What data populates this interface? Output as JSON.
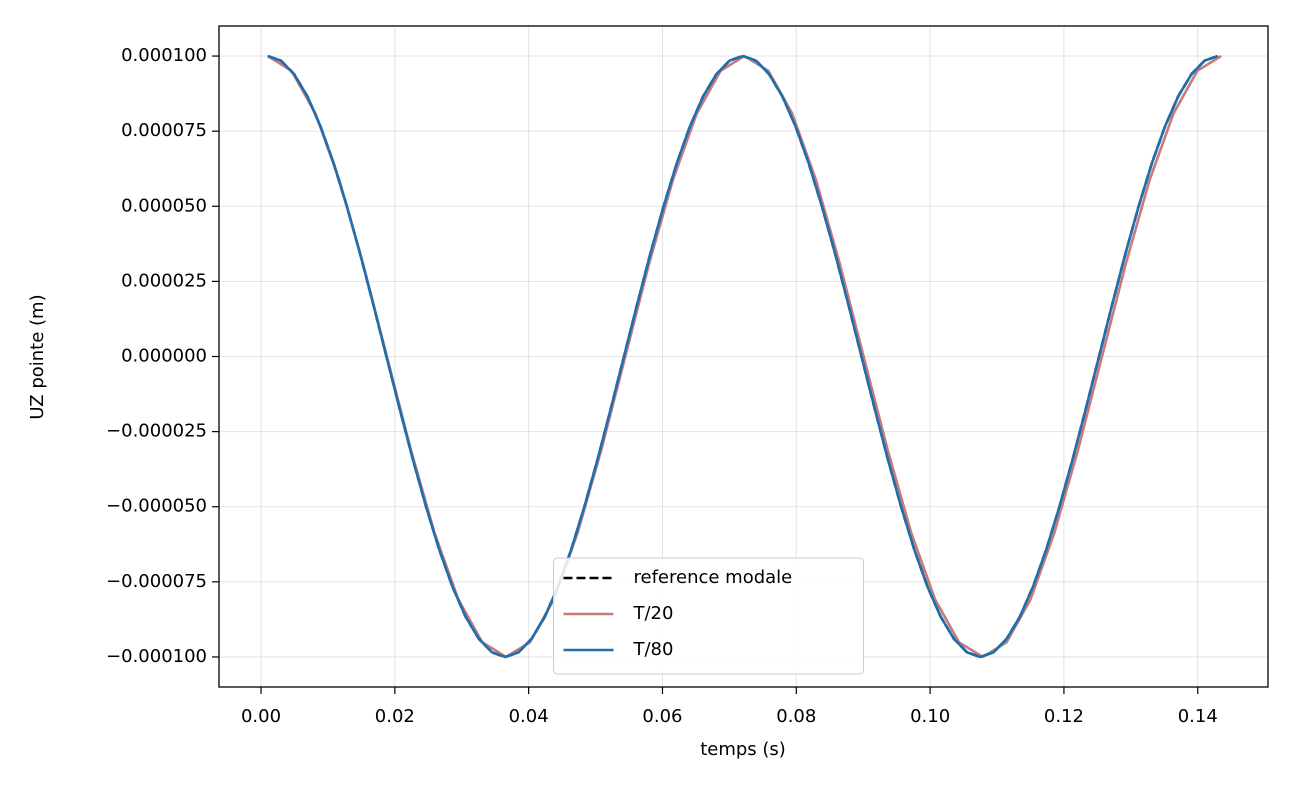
{
  "chart_data": {
    "type": "line",
    "xlabel": "temps (s)",
    "ylabel": "UZ pointe (m)",
    "xlim": [
      -0.00628,
      0.1505
    ],
    "ylim": [
      -0.00011,
      0.00011
    ],
    "xticks": [
      {
        "value": 0,
        "label": "0.00"
      },
      {
        "value": 0.02,
        "label": "0.02"
      },
      {
        "value": 0.04,
        "label": "0.04"
      },
      {
        "value": 0.06,
        "label": "0.06"
      },
      {
        "value": 0.08,
        "label": "0.08"
      },
      {
        "value": 0.1,
        "label": "0.10"
      },
      {
        "value": 0.12,
        "label": "0.12"
      },
      {
        "value": 0.14,
        "label": "0.14"
      }
    ],
    "yticks": [
      {
        "value": -0.0001,
        "label": "−0.000100"
      },
      {
        "value": -7.5e-05,
        "label": "−0.000075"
      },
      {
        "value": -5e-05,
        "label": "−0.000050"
      },
      {
        "value": -2.5e-05,
        "label": "−0.000025"
      },
      {
        "value": 0,
        "label": "0.000000"
      },
      {
        "value": 2.5e-05,
        "label": "0.000025"
      },
      {
        "value": 5e-05,
        "label": "0.000050"
      },
      {
        "value": 7.5e-05,
        "label": "0.000075"
      },
      {
        "value": 0.0001,
        "label": "0.000100"
      }
    ],
    "grid": true,
    "legend": "lower center",
    "x": [
      0.001,
      0.00297,
      0.00494,
      0.00692,
      0.00889,
      0.01086,
      0.01283,
      0.01481,
      0.01678,
      0.01875,
      0.02072,
      0.02269,
      0.02467,
      0.02664,
      0.02861,
      0.03058,
      0.03256,
      0.03453,
      0.0365,
      0.03847,
      0.04044,
      0.04242,
      0.04439,
      0.04636,
      0.04833,
      0.05031,
      0.05228,
      0.05425,
      0.05622,
      0.05819,
      0.06017,
      0.06214,
      0.06411,
      0.06608,
      0.06806,
      0.07003,
      0.072,
      0.07397,
      0.07594,
      0.07792,
      0.07989,
      0.08186,
      0.08383,
      0.08581,
      0.08778,
      0.08975,
      0.09172,
      0.09369,
      0.09567,
      0.09764,
      0.09961,
      0.10158,
      0.10356,
      0.10553,
      0.1075,
      0.10947,
      0.11144,
      0.11342,
      0.11539,
      0.11736,
      0.11933,
      0.12131,
      0.12328,
      0.12525,
      0.12722,
      0.12919,
      0.13117,
      0.13314,
      0.13511,
      0.13708,
      0.13906,
      0.14103,
      0.143
    ],
    "series": [
      {
        "name": "reference modale",
        "color": "#000000",
        "linestyle": "dashed",
        "values": [
          0.0001,
          9.848e-05,
          9.397e-05,
          8.66e-05,
          7.66e-05,
          6.428e-05,
          5e-05,
          3.42e-05,
          1.736e-05,
          0,
          -1.736e-05,
          -3.42e-05,
          -5e-05,
          -6.428e-05,
          -7.66e-05,
          -8.66e-05,
          -9.397e-05,
          -9.848e-05,
          -0.0001,
          -9.848e-05,
          -9.397e-05,
          -8.66e-05,
          -7.66e-05,
          -6.428e-05,
          -5e-05,
          -3.42e-05,
          -1.736e-05,
          0,
          1.736e-05,
          3.42e-05,
          5e-05,
          6.428e-05,
          7.66e-05,
          8.66e-05,
          9.397e-05,
          9.848e-05,
          0.0001,
          9.848e-05,
          9.397e-05,
          8.66e-05,
          7.66e-05,
          6.428e-05,
          5e-05,
          3.42e-05,
          1.736e-05,
          0,
          -1.736e-05,
          -3.42e-05,
          -5e-05,
          -6.428e-05,
          -7.66e-05,
          -8.66e-05,
          -9.397e-05,
          -9.848e-05,
          -0.0001,
          -9.848e-05,
          -9.397e-05,
          -8.66e-05,
          -7.66e-05,
          -6.428e-05,
          -5e-05,
          -3.42e-05,
          -1.736e-05,
          0,
          1.736e-05,
          3.42e-05,
          5e-05,
          6.428e-05,
          7.66e-05,
          8.66e-05,
          9.397e-05,
          9.848e-05,
          0.0001
        ]
      },
      {
        "name": "T/20",
        "color": "#c97a7a",
        "linestyle": "solid",
        "x": [
          0.001,
          0.00456,
          0.00813,
          0.01169,
          0.01525,
          0.01881,
          0.02238,
          0.02594,
          0.0295,
          0.03306,
          0.03663,
          0.04019,
          0.04375,
          0.04731,
          0.05088,
          0.05444,
          0.058,
          0.06156,
          0.06513,
          0.06869,
          0.07225,
          0.07581,
          0.07938,
          0.08294,
          0.0865,
          0.09006,
          0.09363,
          0.09719,
          0.10075,
          0.10431,
          0.10788,
          0.11144,
          0.115,
          0.11856,
          0.12213,
          0.12569,
          0.12925,
          0.13281,
          0.13638,
          0.13994,
          0.1435
        ],
        "values": [
          0.0001,
          9.511e-05,
          8.09e-05,
          5.878e-05,
          3.09e-05,
          0,
          -3.09e-05,
          -5.878e-05,
          -8.09e-05,
          -9.511e-05,
          -0.0001,
          -9.511e-05,
          -8.09e-05,
          -5.878e-05,
          -3.09e-05,
          0,
          3.09e-05,
          5.878e-05,
          8.09e-05,
          9.511e-05,
          0.0001,
          9.511e-05,
          8.09e-05,
          5.878e-05,
          3.09e-05,
          0,
          -3.09e-05,
          -5.878e-05,
          -8.09e-05,
          -9.511e-05,
          -0.0001,
          -9.511e-05,
          -8.09e-05,
          -5.878e-05,
          -3.09e-05,
          0,
          3.09e-05,
          5.878e-05,
          8.09e-05,
          9.511e-05,
          0.0001
        ]
      },
      {
        "name": "T/80",
        "color": "#1f6fae",
        "linestyle": "solid",
        "values": [
          0.0001,
          9.848e-05,
          9.397e-05,
          8.66e-05,
          7.66e-05,
          6.428e-05,
          5e-05,
          3.42e-05,
          1.736e-05,
          0,
          -1.736e-05,
          -3.42e-05,
          -5e-05,
          -6.428e-05,
          -7.66e-05,
          -8.66e-05,
          -9.397e-05,
          -9.848e-05,
          -0.0001,
          -9.848e-05,
          -9.397e-05,
          -8.66e-05,
          -7.66e-05,
          -6.428e-05,
          -5e-05,
          -3.42e-05,
          -1.736e-05,
          0,
          1.736e-05,
          3.42e-05,
          5e-05,
          6.428e-05,
          7.66e-05,
          8.66e-05,
          9.397e-05,
          9.848e-05,
          0.0001,
          9.848e-05,
          9.397e-05,
          8.66e-05,
          7.66e-05,
          6.428e-05,
          5e-05,
          3.42e-05,
          1.736e-05,
          0,
          -1.736e-05,
          -3.42e-05,
          -5e-05,
          -6.428e-05,
          -7.66e-05,
          -8.66e-05,
          -9.397e-05,
          -9.848e-05,
          -0.0001,
          -9.848e-05,
          -9.397e-05,
          -8.66e-05,
          -7.66e-05,
          -6.428e-05,
          -5e-05,
          -3.42e-05,
          -1.736e-05,
          0,
          1.736e-05,
          3.42e-05,
          5e-05,
          6.428e-05,
          7.66e-05,
          8.66e-05,
          9.397e-05,
          9.848e-05,
          0.0001
        ]
      }
    ]
  }
}
